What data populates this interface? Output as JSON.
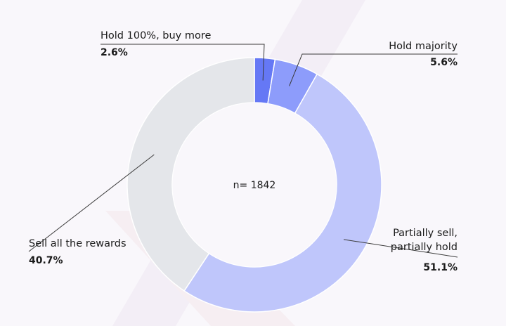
{
  "chart_data": {
    "type": "pie",
    "donut": true,
    "center_text": "n= 1842",
    "slices": [
      {
        "label": "Hold 100%, buy more",
        "value": 2.6,
        "display": "2.6%",
        "color": "#6578f5"
      },
      {
        "label": "Hold majority",
        "value": 5.6,
        "display": "5.6%",
        "color": "#8d9cfb"
      },
      {
        "label_lines": [
          "Partially sell,",
          "partially hold"
        ],
        "value": 51.1,
        "display": "51.1%",
        "color": "#bfc6fb"
      },
      {
        "label": "Sell all the rewards",
        "value": 40.7,
        "display": "40.7%",
        "color": "#e4e6ea"
      }
    ],
    "legend": "none"
  }
}
